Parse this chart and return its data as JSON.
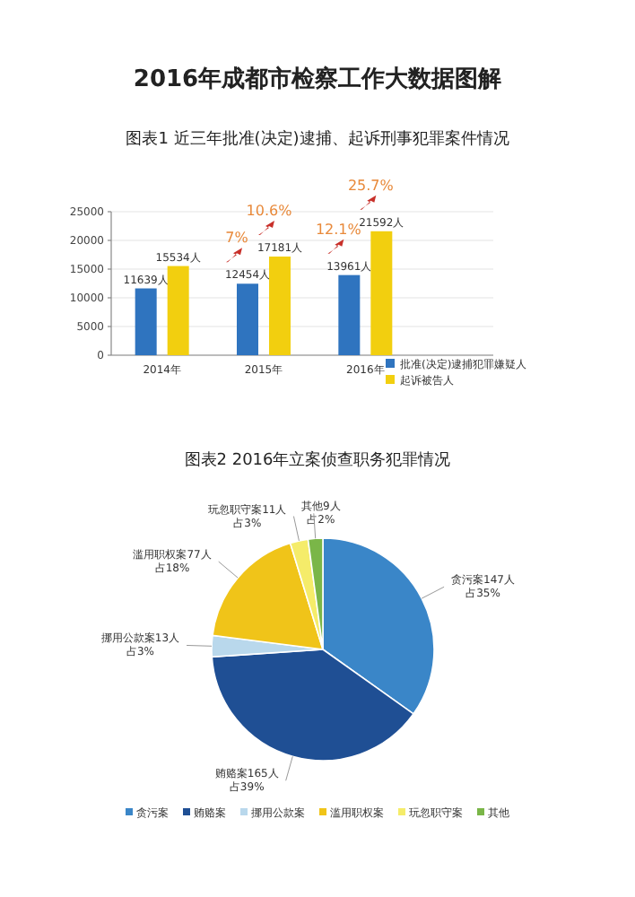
{
  "chart_data": [
    {
      "type": "bar",
      "title": "2016年成都市检察工作大数据图解",
      "subtitle": "图表1 近三年批准(决定)逮捕、起诉刑事犯罪案件情况",
      "categories": [
        "2014年",
        "2015年",
        "2016年"
      ],
      "series": [
        {
          "name": "批准(决定)逮捕犯罪嫌疑人",
          "color": "#2f74bf",
          "values": [
            11639,
            12454,
            13961
          ],
          "value_labels": [
            "11639人",
            "12454人",
            "13961人"
          ]
        },
        {
          "name": "起诉被告人",
          "color": "#f2cf0f",
          "values": [
            15534,
            17181,
            21592
          ],
          "value_labels": [
            "15534人",
            "17181人",
            "21592人"
          ]
        }
      ],
      "ylim": [
        0,
        25000
      ],
      "yticks": [
        0,
        5000,
        10000,
        15000,
        20000,
        25000
      ],
      "grid": "y",
      "legend": "bottom right",
      "annotations": [
        {
          "text": "7%",
          "x": "2015年",
          "y": 12454
        },
        {
          "text": "10.6%",
          "x": "2015年",
          "y": 17181
        },
        {
          "text": "12.1%",
          "x": "2016年",
          "y": 13961
        },
        {
          "text": "25.7%",
          "x": "2016年",
          "y": 21592
        }
      ]
    },
    {
      "type": "pie",
      "title": "图表2 2016年立案侦查职务犯罪情况",
      "categories": [
        "贪污案",
        "贿赂案",
        "挪用公款案",
        "滥用职权案",
        "玩忽职守案",
        "其他"
      ],
      "values": [
        147,
        165,
        13,
        77,
        11,
        9
      ],
      "colors": [
        "#3a86c8",
        "#1f4f94",
        "#b9d8ec",
        "#f0c419",
        "#f5ec6a",
        "#7ab648"
      ],
      "value_labels": [
        "贪污案147人占35%",
        "贿赂案165人占39%",
        "挪用公款案13人占3%",
        "滥用职权案77人占18%",
        "玩忽职守案11人占3%",
        "其他9人占2%"
      ],
      "legend": "bottom"
    }
  ]
}
